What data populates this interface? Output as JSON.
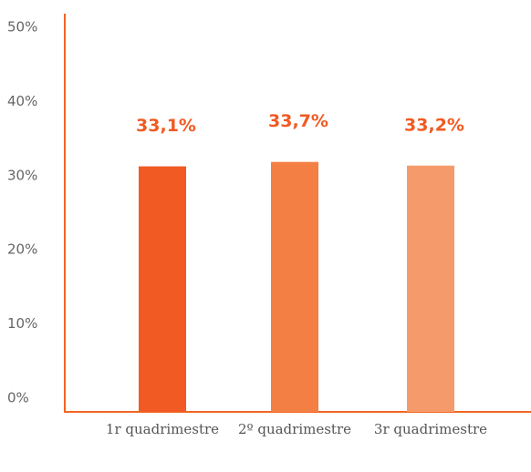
{
  "chart_data": {
    "type": "bar",
    "categories": [
      "1r quadrimestre",
      "2º quadrimestre",
      "3r quadrimestre"
    ],
    "values": [
      33.1,
      33.7,
      33.2
    ],
    "value_labels": [
      "33,1%",
      "33,7%",
      "33,2%"
    ],
    "colors": [
      "#f15a22",
      "#f47f45",
      "#f59b6b"
    ],
    "ylim": [
      0,
      50
    ],
    "yticks": [
      {
        "value": 0,
        "label": "0%"
      },
      {
        "value": 10,
        "label": "10%"
      },
      {
        "value": 20,
        "label": "20%"
      },
      {
        "value": 30,
        "label": "30%"
      },
      {
        "value": 40,
        "label": "40%"
      },
      {
        "value": 50,
        "label": "50%"
      }
    ],
    "grid": false
  }
}
